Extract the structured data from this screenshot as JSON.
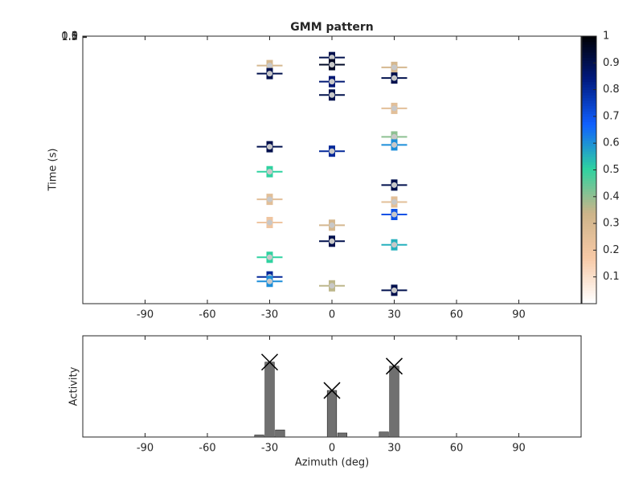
{
  "chart_data": [
    {
      "type": "scatter",
      "title": "GMM pattern",
      "y_label": "Time (s)",
      "x": [
        -30,
        -30,
        -30,
        -30,
        -30,
        -30,
        -30,
        -30,
        -30,
        0,
        0,
        0,
        0,
        0,
        0,
        0,
        0,
        30,
        30,
        30,
        30,
        30,
        30,
        30,
        30,
        30,
        30
      ],
      "y": [
        33,
        42,
        124,
        152,
        183,
        209,
        248,
        270,
        275,
        24,
        32,
        51,
        66,
        129,
        212,
        230,
        280,
        35,
        47,
        81,
        113,
        122,
        167,
        186,
        200,
        234,
        285
      ],
      "values": [
        0.3,
        0.9,
        0.9,
        0.5,
        0.25,
        0.2,
        0.5,
        0.8,
        0.6,
        0.9,
        0.95,
        0.85,
        0.9,
        0.8,
        0.3,
        0.9,
        0.35,
        0.3,
        0.9,
        0.25,
        0.4,
        0.6,
        0.9,
        0.25,
        0.7,
        0.55,
        0.9
      ],
      "xlim": [
        -120,
        120
      ],
      "xticks": [
        -90,
        -60,
        -30,
        0,
        30,
        60,
        90
      ],
      "ylim": [
        0,
        300
      ],
      "yticks": [
        0,
        0.5,
        1,
        1.5
      ],
      "y_reversed": true,
      "marker_color": "#c8c8c8",
      "colormap": [
        "#ffffff",
        "#f7c9a6",
        "#cdb489",
        "#2fd2a0",
        "#1060ff",
        "#001a80",
        "#000000"
      ],
      "clim": [
        0,
        1
      ],
      "cticks": [
        0.1,
        0.2,
        0.3,
        0.4,
        0.5,
        0.6,
        0.7,
        0.8,
        0.9,
        1
      ]
    },
    {
      "type": "bar",
      "x_label": "Azimuth (deg)",
      "y_label": "Activity",
      "x": [
        -35,
        -30,
        -25,
        0,
        5,
        25,
        30
      ],
      "values": [
        0.02,
        0.74,
        0.07,
        0.46,
        0.04,
        0.05,
        0.7
      ],
      "color": "#707070",
      "peaks": {
        "x": [
          -30,
          0,
          30
        ],
        "values": [
          0.74,
          0.46,
          0.7
        ]
      },
      "xlim": [
        -120,
        120
      ],
      "xticks": [
        -90,
        -60,
        -30,
        0,
        30,
        60,
        90
      ],
      "ylim": [
        0,
        1
      ]
    }
  ]
}
